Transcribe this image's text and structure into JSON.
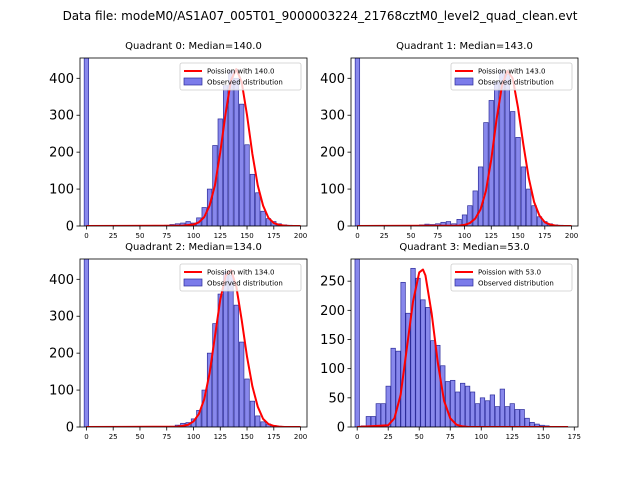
{
  "figure_title": "Data file: modeM0/AS1A07_005T01_9000003224_21768cztM0_level2_quad_clean.evt",
  "colors": {
    "bar_fill": "#7b7bea",
    "bar_stroke": "#2d2d9b",
    "line": "#ff0000",
    "axis": "#000000"
  },
  "chart_data": [
    {
      "type": "bar",
      "title": "Quadrant 0: Median=140.0",
      "legend": {
        "placement": "top-right",
        "line_label": "Poission with 140.0",
        "bar_label": "Observed distribution"
      },
      "xlim": [
        -6,
        206
      ],
      "ylim": [
        0,
        455
      ],
      "xticks": [
        0,
        25,
        50,
        75,
        100,
        125,
        150,
        175,
        200
      ],
      "yticks": [
        0,
        100,
        200,
        300,
        400
      ],
      "bin_width": 4.2,
      "spike": {
        "x": 0,
        "value": 455
      },
      "bins": {
        "x": [
          75,
          80,
          85,
          90,
          95,
          100,
          105,
          110,
          115,
          120,
          125,
          130,
          135,
          140,
          145,
          150,
          155,
          160,
          165,
          170,
          175,
          180,
          185,
          190,
          195
        ],
        "values": [
          2,
          4,
          6,
          8,
          12,
          8,
          22,
          50,
          100,
          218,
          290,
          380,
          420,
          400,
          330,
          220,
          140,
          90,
          40,
          20,
          12,
          6,
          3,
          2,
          1
        ]
      },
      "poisson": {
        "x": [
          0,
          90,
          100,
          105,
          110,
          115,
          120,
          125,
          130,
          135,
          140,
          145,
          150,
          155,
          160,
          165,
          170,
          175,
          180,
          185,
          190,
          195,
          200
        ],
        "y": [
          0,
          1,
          4,
          10,
          24,
          55,
          110,
          200,
          305,
          395,
          425,
          390,
          300,
          195,
          110,
          55,
          22,
          8,
          3,
          1,
          0,
          0,
          0
        ]
      }
    },
    {
      "type": "bar",
      "title": "Quadrant 1: Median=143.0",
      "legend": {
        "placement": "top-right",
        "line_label": "Poission with 143.0",
        "bar_label": "Observed distribution"
      },
      "xlim": [
        -6,
        206
      ],
      "ylim": [
        0,
        455
      ],
      "xticks": [
        0,
        25,
        50,
        75,
        100,
        125,
        150,
        175,
        200
      ],
      "yticks": [
        0,
        100,
        200,
        300,
        400
      ],
      "bin_width": 4.2,
      "spike": {
        "x": 0,
        "value": 455
      },
      "bins": {
        "x": [
          60,
          65,
          70,
          75,
          80,
          85,
          90,
          95,
          100,
          105,
          110,
          115,
          120,
          125,
          130,
          135,
          140,
          145,
          150,
          155,
          160,
          165,
          170,
          175,
          180,
          185,
          190,
          195
        ],
        "values": [
          3,
          5,
          4,
          6,
          10,
          12,
          6,
          18,
          30,
          55,
          95,
          160,
          280,
          340,
          390,
          420,
          410,
          310,
          240,
          160,
          100,
          55,
          25,
          12,
          6,
          3,
          2,
          1
        ]
      },
      "poisson": {
        "x": [
          0,
          95,
          100,
          105,
          110,
          115,
          120,
          125,
          130,
          135,
          140,
          145,
          150,
          155,
          160,
          165,
          170,
          175,
          180,
          185,
          190,
          195,
          200
        ],
        "y": [
          0,
          1,
          3,
          8,
          20,
          45,
          95,
          180,
          290,
          380,
          420,
          400,
          320,
          220,
          130,
          65,
          28,
          10,
          4,
          1,
          0,
          0,
          0
        ]
      }
    },
    {
      "type": "bar",
      "title": "Quadrant 2: Median=134.0",
      "legend": {
        "placement": "top-right",
        "line_label": "Poission with 134.0",
        "bar_label": "Observed distribution"
      },
      "xlim": [
        -6,
        206
      ],
      "ylim": [
        0,
        455
      ],
      "xticks": [
        0,
        25,
        50,
        75,
        100,
        125,
        150,
        175,
        200
      ],
      "yticks": [
        0,
        100,
        200,
        300,
        400
      ],
      "bin_width": 4.2,
      "spike": {
        "x": 0,
        "value": 455
      },
      "bins": {
        "x": [
          80,
          85,
          90,
          95,
          100,
          105,
          110,
          115,
          120,
          125,
          130,
          135,
          140,
          145,
          150,
          155,
          160,
          165,
          170,
          175,
          180
        ],
        "values": [
          2,
          5,
          10,
          12,
          22,
          45,
          100,
          200,
          280,
          360,
          420,
          410,
          330,
          230,
          130,
          70,
          30,
          14,
          8,
          4,
          2
        ]
      },
      "poisson": {
        "x": [
          0,
          85,
          90,
          95,
          100,
          105,
          110,
          115,
          120,
          125,
          130,
          135,
          140,
          145,
          150,
          155,
          160,
          165,
          170,
          175,
          180,
          185,
          190,
          200
        ],
        "y": [
          0,
          1,
          3,
          6,
          15,
          35,
          75,
          145,
          245,
          345,
          410,
          425,
          380,
          290,
          190,
          110,
          55,
          22,
          8,
          3,
          1,
          0,
          0,
          0
        ]
      }
    },
    {
      "type": "bar",
      "title": "Quadrant 3: Median=53.0",
      "legend": {
        "placement": "top-right",
        "line_label": "Poission with 53.0",
        "bar_label": "Observed distribution"
      },
      "xlim": [
        -5,
        178
      ],
      "ylim": [
        0,
        288
      ],
      "xticks": [
        0,
        25,
        50,
        75,
        100,
        125,
        150,
        175
      ],
      "yticks": [
        0,
        50,
        100,
        150,
        200,
        250
      ],
      "bin_width": 3.6,
      "spike": {
        "x": 0,
        "value": 288
      },
      "bins": {
        "x": [
          5,
          9,
          13,
          17,
          21,
          25,
          29,
          33,
          37,
          41,
          45,
          49,
          53,
          57,
          61,
          65,
          69,
          73,
          77,
          81,
          85,
          89,
          93,
          97,
          101,
          105,
          109,
          113,
          117,
          121,
          125,
          129,
          133,
          137,
          141,
          145,
          149,
          153,
          157,
          161
        ],
        "values": [
          2,
          18,
          18,
          40,
          40,
          70,
          135,
          130,
          248,
          195,
          272,
          255,
          218,
          205,
          148,
          140,
          105,
          78,
          80,
          60,
          75,
          70,
          60,
          40,
          50,
          45,
          55,
          35,
          65,
          35,
          40,
          30,
          30,
          15,
          8,
          5,
          3,
          2,
          1,
          1
        ]
      },
      "poisson": {
        "x": [
          0,
          25,
          30,
          35,
          40,
          45,
          50,
          53,
          55,
          60,
          65,
          70,
          75,
          80,
          85,
          90,
          100,
          110,
          120,
          130,
          170
        ],
        "y": [
          0,
          3,
          15,
          55,
          135,
          215,
          265,
          270,
          260,
          195,
          110,
          45,
          15,
          4,
          1,
          0,
          0,
          0,
          0,
          0,
          0
        ]
      }
    }
  ]
}
